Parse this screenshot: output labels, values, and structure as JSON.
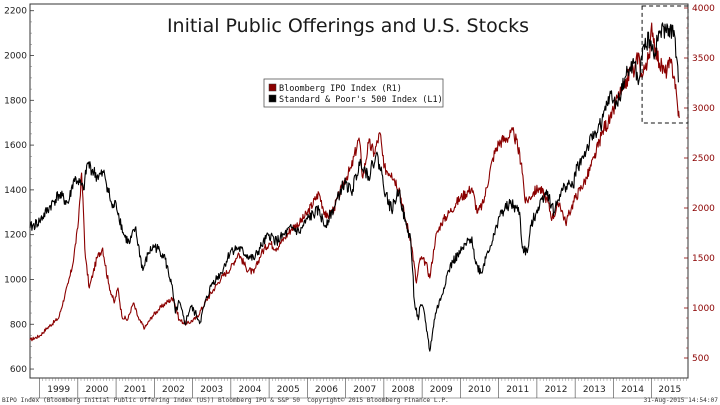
{
  "chart_data": {
    "type": "line",
    "title": "Initial Public Offerings and U.S. Stocks",
    "x_labels": [
      "1999",
      "2000",
      "2001",
      "2002",
      "2003",
      "2004",
      "2005",
      "2006",
      "2007",
      "2008",
      "2009",
      "2010",
      "2011",
      "2012",
      "2013",
      "2014",
      "2015"
    ],
    "x_range": [
      1998.75,
      2015.95
    ],
    "y_left": {
      "ticks": [
        600,
        800,
        1000,
        1200,
        1400,
        1600,
        1800,
        2000,
        2200
      ],
      "range": [
        560,
        2230
      ],
      "label": ""
    },
    "y_right": {
      "ticks": [
        500,
        1000,
        1500,
        2000,
        2500,
        3000,
        3500,
        4000
      ],
      "range": [
        300,
        4040
      ],
      "label": ""
    },
    "legend": {
      "position": "top-center",
      "items": [
        {
          "label": "Bloomberg IPO Index (R1)",
          "color": "#8b0000"
        },
        {
          "label": "Standard & Poor's 500 Index (L1)",
          "color": "#000000"
        }
      ]
    },
    "series": [
      {
        "name": "Standard & Poor's 500 Index (L1)",
        "axis": "left",
        "color": "#000000",
        "points": [
          [
            1998.75,
            1230
          ],
          [
            1999.0,
            1260
          ],
          [
            1999.25,
            1320
          ],
          [
            1999.5,
            1380
          ],
          [
            1999.75,
            1340
          ],
          [
            1999.9,
            1450
          ],
          [
            2000.0,
            1440
          ],
          [
            2000.15,
            1400
          ],
          [
            2000.25,
            1520
          ],
          [
            2000.5,
            1460
          ],
          [
            2000.7,
            1470
          ],
          [
            2000.9,
            1320
          ],
          [
            2001.0,
            1340
          ],
          [
            2001.2,
            1200
          ],
          [
            2001.35,
            1160
          ],
          [
            2001.5,
            1230
          ],
          [
            2001.7,
            1040
          ],
          [
            2001.85,
            1120
          ],
          [
            2002.0,
            1150
          ],
          [
            2002.25,
            1110
          ],
          [
            2002.45,
            980
          ],
          [
            2002.55,
            850
          ],
          [
            2002.65,
            900
          ],
          [
            2002.8,
            800
          ],
          [
            2002.95,
            880
          ],
          [
            2003.1,
            840
          ],
          [
            2003.2,
            810
          ],
          [
            2003.3,
            880
          ],
          [
            2003.5,
            980
          ],
          [
            2003.75,
            1030
          ],
          [
            2004.0,
            1130
          ],
          [
            2004.2,
            1140
          ],
          [
            2004.4,
            1110
          ],
          [
            2004.6,
            1090
          ],
          [
            2004.8,
            1150
          ],
          [
            2005.0,
            1200
          ],
          [
            2005.2,
            1170
          ],
          [
            2005.4,
            1200
          ],
          [
            2005.6,
            1230
          ],
          [
            2005.8,
            1210
          ],
          [
            2006.0,
            1270
          ],
          [
            2006.3,
            1310
          ],
          [
            2006.45,
            1240
          ],
          [
            2006.7,
            1320
          ],
          [
            2006.9,
            1410
          ],
          [
            2007.0,
            1430
          ],
          [
            2007.15,
            1390
          ],
          [
            2007.4,
            1530
          ],
          [
            2007.6,
            1460
          ],
          [
            2007.8,
            1560
          ],
          [
            2007.95,
            1470
          ],
          [
            2008.05,
            1380
          ],
          [
            2008.2,
            1310
          ],
          [
            2008.4,
            1400
          ],
          [
            2008.55,
            1260
          ],
          [
            2008.7,
            1180
          ],
          [
            2008.8,
            900
          ],
          [
            2008.9,
            820
          ],
          [
            2008.95,
            880
          ],
          [
            2009.05,
            860
          ],
          [
            2009.15,
            740
          ],
          [
            2009.2,
            680
          ],
          [
            2009.35,
            850
          ],
          [
            2009.5,
            920
          ],
          [
            2009.65,
            1020
          ],
          [
            2009.8,
            1080
          ],
          [
            2010.0,
            1120
          ],
          [
            2010.3,
            1190
          ],
          [
            2010.4,
            1070
          ],
          [
            2010.55,
            1030
          ],
          [
            2010.7,
            1120
          ],
          [
            2010.9,
            1200
          ],
          [
            2011.0,
            1280
          ],
          [
            2011.3,
            1340
          ],
          [
            2011.55,
            1300
          ],
          [
            2011.62,
            1140
          ],
          [
            2011.75,
            1120
          ],
          [
            2011.85,
            1240
          ],
          [
            2012.0,
            1310
          ],
          [
            2012.25,
            1400
          ],
          [
            2012.45,
            1300
          ],
          [
            2012.6,
            1380
          ],
          [
            2012.8,
            1430
          ],
          [
            2012.95,
            1410
          ],
          [
            2013.0,
            1480
          ],
          [
            2013.3,
            1580
          ],
          [
            2013.5,
            1650
          ],
          [
            2013.7,
            1700
          ],
          [
            2013.9,
            1820
          ],
          [
            2014.1,
            1780
          ],
          [
            2014.3,
            1900
          ],
          [
            2014.55,
            1970
          ],
          [
            2014.65,
            1870
          ],
          [
            2014.8,
            2050
          ],
          [
            2014.95,
            2070
          ],
          [
            2015.05,
            2000
          ],
          [
            2015.2,
            2100
          ],
          [
            2015.45,
            2120
          ],
          [
            2015.6,
            2090
          ],
          [
            2015.7,
            1880
          ]
        ]
      },
      {
        "name": "Bloomberg IPO Index (R1)",
        "axis": "right",
        "color": "#8b0000",
        "points": [
          [
            1998.75,
            680
          ],
          [
            1999.0,
            720
          ],
          [
            1999.2,
            800
          ],
          [
            1999.5,
            900
          ],
          [
            1999.75,
            1250
          ],
          [
            1999.85,
            1400
          ],
          [
            2000.0,
            1800
          ],
          [
            2000.1,
            2350
          ],
          [
            2000.2,
            1500
          ],
          [
            2000.3,
            1200
          ],
          [
            2000.4,
            1350
          ],
          [
            2000.5,
            1500
          ],
          [
            2000.65,
            1600
          ],
          [
            2000.8,
            1250
          ],
          [
            2000.95,
            1050
          ],
          [
            2001.05,
            1200
          ],
          [
            2001.15,
            920
          ],
          [
            2001.3,
            880
          ],
          [
            2001.45,
            1050
          ],
          [
            2001.6,
            880
          ],
          [
            2001.75,
            800
          ],
          [
            2001.95,
            920
          ],
          [
            2002.1,
            980
          ],
          [
            2002.3,
            1050
          ],
          [
            2002.5,
            1100
          ],
          [
            2002.65,
            880
          ],
          [
            2002.85,
            840
          ],
          [
            2003.1,
            900
          ],
          [
            2003.4,
            1100
          ],
          [
            2003.75,
            1300
          ],
          [
            2004.0,
            1400
          ],
          [
            2004.2,
            1550
          ],
          [
            2004.4,
            1400
          ],
          [
            2004.6,
            1350
          ],
          [
            2004.8,
            1550
          ],
          [
            2005.0,
            1650
          ],
          [
            2005.2,
            1600
          ],
          [
            2005.4,
            1700
          ],
          [
            2005.6,
            1800
          ],
          [
            2005.8,
            1850
          ],
          [
            2006.0,
            1950
          ],
          [
            2006.3,
            2150
          ],
          [
            2006.5,
            1900
          ],
          [
            2006.7,
            2000
          ],
          [
            2006.9,
            2200
          ],
          [
            2007.0,
            2300
          ],
          [
            2007.15,
            2400
          ],
          [
            2007.35,
            2700
          ],
          [
            2007.45,
            2300
          ],
          [
            2007.6,
            2650
          ],
          [
            2007.75,
            2550
          ],
          [
            2007.9,
            2750
          ],
          [
            2008.0,
            2400
          ],
          [
            2008.2,
            2350
          ],
          [
            2008.4,
            2200
          ],
          [
            2008.55,
            1900
          ],
          [
            2008.7,
            1700
          ],
          [
            2008.85,
            1250
          ],
          [
            2008.95,
            1500
          ],
          [
            2009.1,
            1450
          ],
          [
            2009.2,
            1300
          ],
          [
            2009.35,
            1700
          ],
          [
            2009.5,
            1850
          ],
          [
            2009.7,
            1950
          ],
          [
            2009.9,
            2050
          ],
          [
            2010.0,
            2100
          ],
          [
            2010.3,
            2200
          ],
          [
            2010.45,
            1950
          ],
          [
            2010.6,
            2050
          ],
          [
            2010.85,
            2500
          ],
          [
            2011.0,
            2650
          ],
          [
            2011.2,
            2700
          ],
          [
            2011.4,
            2750
          ],
          [
            2011.6,
            2450
          ],
          [
            2011.7,
            2050
          ],
          [
            2011.9,
            2150
          ],
          [
            2012.05,
            2200
          ],
          [
            2012.25,
            2100
          ],
          [
            2012.4,
            1900
          ],
          [
            2012.6,
            2050
          ],
          [
            2012.75,
            1850
          ],
          [
            2012.9,
            2000
          ],
          [
            2013.0,
            2100
          ],
          [
            2013.3,
            2300
          ],
          [
            2013.5,
            2500
          ],
          [
            2013.75,
            2800
          ],
          [
            2013.95,
            2900
          ],
          [
            2014.1,
            3100
          ],
          [
            2014.3,
            3200
          ],
          [
            2014.45,
            3400
          ],
          [
            2014.55,
            3350
          ],
          [
            2014.65,
            3550
          ],
          [
            2014.75,
            3300
          ],
          [
            2014.85,
            3450
          ],
          [
            2014.95,
            3500
          ],
          [
            2015.0,
            3850
          ],
          [
            2015.1,
            3600
          ],
          [
            2015.2,
            3450
          ],
          [
            2015.35,
            3350
          ],
          [
            2015.5,
            3450
          ],
          [
            2015.6,
            3300
          ],
          [
            2015.68,
            3000
          ],
          [
            2015.72,
            2900
          ]
        ]
      }
    ],
    "annotation": {
      "type": "dashed-box",
      "x_range": [
        2014.75,
        2015.95
      ],
      "y_right_range": [
        2850,
        4020
      ]
    },
    "footer": {
      "left": "BIPO Index (Bloomberg Initial Public Offering Index (US)) Bloomberg IPO & S&P 50",
      "center": "Copyright© 2015 Bloomberg Finance L.P.",
      "right": "31-Aug-2015 14:54:07"
    }
  }
}
